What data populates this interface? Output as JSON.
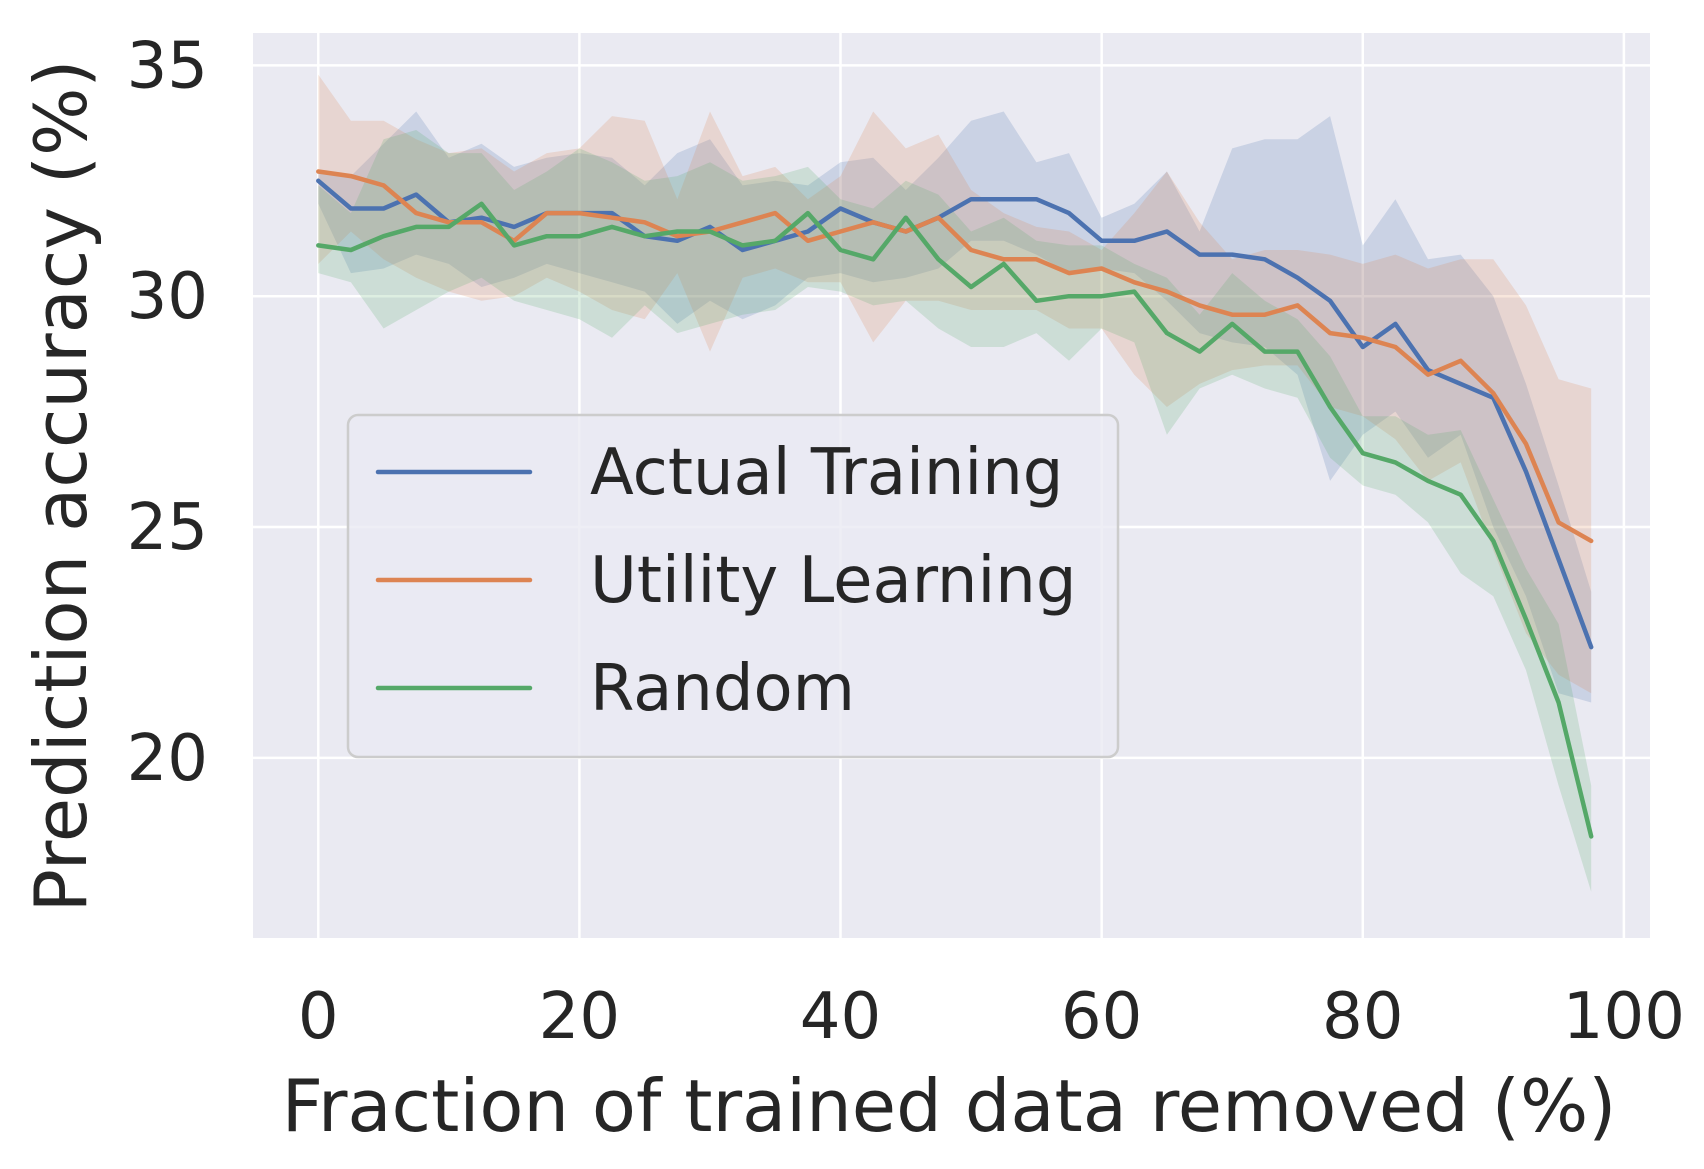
{
  "chart_data": {
    "type": "line",
    "title": "",
    "xlabel": "Fraction of trained data removed (%)",
    "ylabel": "Prediction accuracy (%)",
    "xlim": [
      -5,
      102
    ],
    "ylim": [
      16.1,
      35.7
    ],
    "xticks": [
      0,
      20,
      40,
      60,
      80,
      100
    ],
    "yticks": [
      20,
      25,
      30,
      35
    ],
    "grid": true,
    "legend_position": "center-left",
    "x": [
      0,
      2.5,
      5,
      7.5,
      10,
      12.5,
      15,
      17.5,
      20,
      22.5,
      25,
      27.5,
      30,
      32.5,
      35,
      37.5,
      40,
      42.5,
      45,
      47.5,
      50,
      52.5,
      55,
      57.5,
      60,
      62.5,
      65,
      67.5,
      70,
      72.5,
      75,
      77.5,
      80,
      82.5,
      85,
      87.5,
      90,
      92.5,
      95,
      97.5
    ],
    "series": [
      {
        "name": "Actual Training",
        "color": "#4c72b0",
        "values": [
          32.5,
          31.9,
          31.9,
          32.2,
          31.6,
          31.7,
          31.5,
          31.8,
          31.8,
          31.8,
          31.3,
          31.2,
          31.5,
          31.0,
          31.2,
          31.4,
          31.9,
          31.6,
          31.4,
          31.7,
          32.1,
          32.1,
          32.1,
          31.8,
          31.2,
          31.2,
          31.4,
          30.9,
          30.9,
          30.8,
          30.4,
          29.9,
          28.9,
          29.4,
          28.4,
          28.1,
          27.8,
          26.2,
          24.3,
          22.4
        ],
        "upper": [
          32.7,
          32.6,
          33.3,
          34.0,
          33.0,
          33.3,
          32.8,
          33.0,
          33.1,
          33.0,
          32.4,
          33.1,
          33.4,
          32.4,
          32.5,
          32.4,
          32.9,
          33.0,
          32.3,
          33.0,
          33.8,
          34.0,
          32.9,
          33.1,
          31.7,
          32.0,
          32.7,
          31.4,
          33.2,
          33.4,
          33.4,
          33.9,
          31.1,
          32.1,
          30.8,
          30.9,
          30.0,
          28.1,
          25.9,
          23.6
        ],
        "lower": [
          32.0,
          30.5,
          30.6,
          30.9,
          30.7,
          30.2,
          30.4,
          30.7,
          30.5,
          30.3,
          30.1,
          29.4,
          29.9,
          29.5,
          29.8,
          30.4,
          30.5,
          30.3,
          30.4,
          30.6,
          31.2,
          31.2,
          30.9,
          30.5,
          30.6,
          30.5,
          29.9,
          29.2,
          29.0,
          28.9,
          28.3,
          26.0,
          27.0,
          27.5,
          26.5,
          27.0,
          25.0,
          23.5,
          21.4,
          21.2
        ]
      },
      {
        "name": "Utility Learning",
        "color": "#dd8452",
        "values": [
          32.7,
          32.6,
          32.4,
          31.8,
          31.6,
          31.6,
          31.2,
          31.8,
          31.8,
          31.7,
          31.6,
          31.3,
          31.4,
          31.6,
          31.8,
          31.2,
          31.4,
          31.6,
          31.4,
          31.7,
          31.0,
          30.8,
          30.8,
          30.5,
          30.6,
          30.3,
          30.1,
          29.8,
          29.6,
          29.6,
          29.8,
          29.2,
          29.1,
          28.9,
          28.3,
          28.6,
          27.9,
          26.8,
          25.1,
          24.7
        ],
        "upper": [
          34.8,
          33.8,
          33.8,
          33.4,
          33.1,
          33.2,
          32.7,
          33.1,
          33.2,
          33.9,
          33.8,
          32.1,
          34.0,
          32.6,
          32.8,
          32.1,
          32.6,
          34.0,
          33.2,
          33.5,
          32.3,
          31.8,
          31.5,
          31.4,
          31.0,
          31.8,
          32.7,
          31.6,
          30.8,
          31.0,
          31.0,
          30.9,
          30.7,
          30.9,
          30.6,
          30.8,
          30.8,
          29.8,
          28.2,
          28.0
        ],
        "lower": [
          30.7,
          31.4,
          30.8,
          30.4,
          30.1,
          29.9,
          30.0,
          30.4,
          30.1,
          29.7,
          29.5,
          30.5,
          28.8,
          30.4,
          30.6,
          30.3,
          30.3,
          29.0,
          29.9,
          29.9,
          29.7,
          29.7,
          29.7,
          29.3,
          29.3,
          28.3,
          27.6,
          28.1,
          28.4,
          28.5,
          28.5,
          27.6,
          27.4,
          26.9,
          26.0,
          26.4,
          24.5,
          22.7,
          21.8,
          21.4
        ]
      },
      {
        "name": "Random",
        "color": "#55a868",
        "values": [
          31.1,
          31.0,
          31.3,
          31.5,
          31.5,
          32.0,
          31.1,
          31.3,
          31.3,
          31.5,
          31.3,
          31.4,
          31.4,
          31.1,
          31.2,
          31.8,
          31.0,
          30.8,
          31.7,
          30.8,
          30.2,
          30.7,
          29.9,
          30.0,
          30.0,
          30.1,
          29.2,
          28.8,
          29.4,
          28.8,
          28.8,
          27.6,
          26.6,
          26.4,
          26.0,
          25.7,
          24.7,
          23.0,
          21.2,
          18.3
        ],
        "upper": [
          32.4,
          31.8,
          33.4,
          33.6,
          33.1,
          33.1,
          32.3,
          32.7,
          33.2,
          32.9,
          32.5,
          32.6,
          32.9,
          32.5,
          32.6,
          32.8,
          32.1,
          31.9,
          32.5,
          32.2,
          31.4,
          31.7,
          31.2,
          31.1,
          31.1,
          30.7,
          30.4,
          29.6,
          30.5,
          29.9,
          29.5,
          28.7,
          27.4,
          27.4,
          27.0,
          27.1,
          25.6,
          24.1,
          22.9,
          19.4
        ],
        "lower": [
          30.5,
          30.3,
          29.3,
          29.7,
          30.1,
          30.4,
          29.9,
          29.7,
          29.5,
          29.1,
          29.8,
          29.2,
          29.4,
          29.6,
          29.7,
          30.2,
          30.1,
          29.8,
          29.9,
          29.3,
          28.9,
          28.9,
          29.2,
          28.6,
          29.3,
          29.0,
          27.0,
          28.0,
          28.3,
          28.0,
          27.8,
          26.5,
          25.9,
          25.7,
          25.1,
          24.0,
          23.5,
          21.9,
          19.4,
          17.1
        ]
      }
    ]
  }
}
